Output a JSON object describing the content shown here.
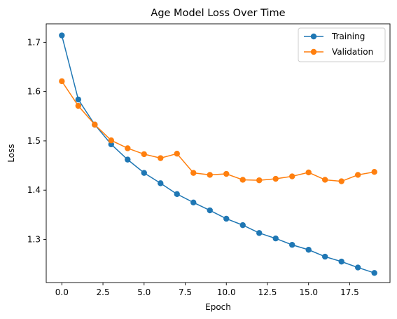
{
  "chart_data": {
    "type": "line",
    "title": "Age Model Loss Over Time",
    "xlabel": "Epoch",
    "ylabel": "Loss",
    "xlim": [
      -0.95,
      19.95
    ],
    "ylim": [
      1.2125,
      1.7375
    ],
    "xticks": [
      0.0,
      2.5,
      5.0,
      7.5,
      10.0,
      12.5,
      15.0,
      17.5
    ],
    "xtick_labels": [
      "0.0",
      "2.5",
      "5.0",
      "7.5",
      "10.0",
      "12.5",
      "15.0",
      "17.5"
    ],
    "yticks": [
      1.3,
      1.4,
      1.5,
      1.6,
      1.7
    ],
    "ytick_labels": [
      "1.3",
      "1.4",
      "1.5",
      "1.6",
      "1.7"
    ],
    "grid": false,
    "legend_position": "top-right",
    "x": [
      0,
      1,
      2,
      3,
      4,
      5,
      6,
      7,
      8,
      9,
      10,
      11,
      12,
      13,
      14,
      15,
      16,
      17,
      18,
      19
    ],
    "series": [
      {
        "name": "Training",
        "color": "#1f77b4",
        "marker": "circle",
        "values": [
          1.714,
          1.584,
          1.533,
          1.493,
          1.462,
          1.435,
          1.414,
          1.392,
          1.375,
          1.359,
          1.342,
          1.329,
          1.313,
          1.302,
          1.289,
          1.279,
          1.265,
          1.255,
          1.243,
          1.232
        ]
      },
      {
        "name": "Validation",
        "color": "#ff7f0e",
        "marker": "circle",
        "values": [
          1.621,
          1.571,
          1.533,
          1.501,
          1.485,
          1.473,
          1.465,
          1.474,
          1.435,
          1.431,
          1.433,
          1.421,
          1.42,
          1.423,
          1.428,
          1.436,
          1.421,
          1.418,
          1.431,
          1.437
        ]
      }
    ]
  }
}
